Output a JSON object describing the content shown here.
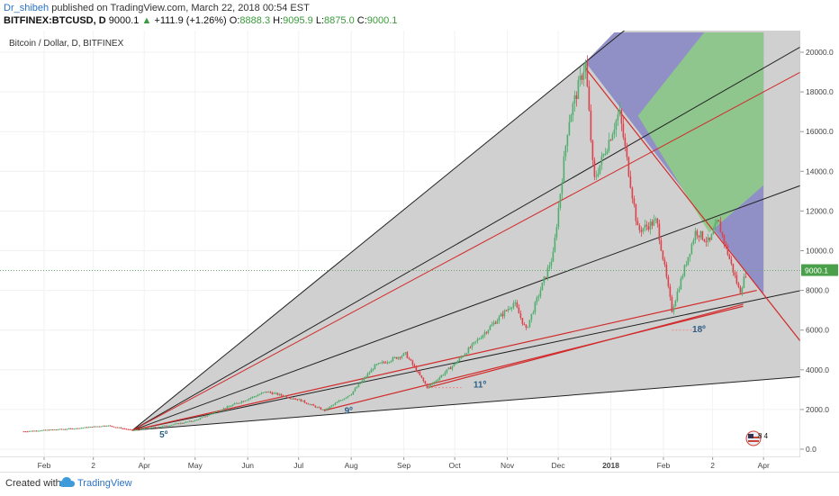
{
  "header": {
    "author": "Dr_shibeh",
    "published_text": "published on TradingView.com, March 22, 2018 00:54 EST",
    "symbol": "BITFINEX:BTCUSD, D",
    "last": "9000.1",
    "change": "+111.9 (+1.26%)",
    "open_label": "O:",
    "open": "8888.3",
    "high_label": "H:",
    "high": "9095.9",
    "low_label": "L:",
    "low": "8875.0",
    "close_label": "C:",
    "close": "9000.1"
  },
  "footer": {
    "created_with": "Created with",
    "brand": "TradingView"
  },
  "colors": {
    "up": "#4caf6a",
    "down": "#e0404a",
    "fan_fill": "#cdcdcd",
    "blue_zone": "#8c8cc6",
    "green_zone": "#8ec98a",
    "red_line": "#d22a2a",
    "black_line": "#222222"
  },
  "chart_data": {
    "type": "candlestick",
    "title": "Bitcoin / Dollar, D, BITFINEX",
    "x_tick_labels": [
      "Feb",
      "2",
      "Apr",
      "May",
      "Jun",
      "Jul",
      "Aug",
      "Sep",
      "Oct",
      "Nov",
      "Dec",
      "2018",
      "Feb",
      "2",
      "Apr"
    ],
    "y_ticks": [
      0,
      2000,
      4000,
      6000,
      8000,
      10000,
      12000,
      14000,
      16000,
      18000,
      20000
    ],
    "y_tick_labels": [
      "0.0",
      "2000.0",
      "4000.0",
      "6000.0",
      "8000.0",
      "10000.0",
      "12000.0",
      "14000.0",
      "16000.0",
      "18000.0",
      "20000.0"
    ],
    "ylim": [
      -400,
      21000
    ],
    "last_price_label": "9000.1",
    "last_price": 9000.1,
    "annotations": [
      "5º",
      "9º",
      "11º",
      "18º"
    ],
    "monthly_path": [
      {
        "t": "2017-01-20",
        "v": 900
      },
      {
        "t": "2017-02-20",
        "v": 1050
      },
      {
        "t": "2017-03-10",
        "v": 1200
      },
      {
        "t": "2017-03-25",
        "v": 950
      },
      {
        "t": "2017-04-15",
        "v": 1200
      },
      {
        "t": "2017-05-01",
        "v": 1450
      },
      {
        "t": "2017-05-25",
        "v": 2300
      },
      {
        "t": "2017-06-12",
        "v": 2900
      },
      {
        "t": "2017-07-01",
        "v": 2500
      },
      {
        "t": "2017-07-16",
        "v": 1950
      },
      {
        "t": "2017-08-01",
        "v": 2800
      },
      {
        "t": "2017-08-15",
        "v": 4200
      },
      {
        "t": "2017-09-02",
        "v": 4800
      },
      {
        "t": "2017-09-15",
        "v": 3100
      },
      {
        "t": "2017-10-01",
        "v": 4300
      },
      {
        "t": "2017-10-20",
        "v": 6000
      },
      {
        "t": "2017-11-05",
        "v": 7400
      },
      {
        "t": "2017-11-12",
        "v": 6000
      },
      {
        "t": "2017-11-28",
        "v": 9800
      },
      {
        "t": "2017-12-07",
        "v": 16500
      },
      {
        "t": "2017-12-17",
        "v": 19500
      },
      {
        "t": "2017-12-22",
        "v": 13500
      },
      {
        "t": "2018-01-06",
        "v": 17000
      },
      {
        "t": "2018-01-17",
        "v": 11000
      },
      {
        "t": "2018-01-28",
        "v": 11500
      },
      {
        "t": "2018-02-06",
        "v": 7000
      },
      {
        "t": "2018-02-20",
        "v": 11000
      },
      {
        "t": "2018-02-28",
        "v": 10400
      },
      {
        "t": "2018-03-05",
        "v": 11500
      },
      {
        "t": "2018-03-18",
        "v": 7900
      },
      {
        "t": "2018-03-22",
        "v": 9000
      }
    ],
    "gann_fan": {
      "origin": {
        "t": "2017-03-25",
        "v": 950
      },
      "rays_to": [
        {
          "t": "2017-12-17",
          "v": 19500,
          "color": "black"
        },
        {
          "t": "2018-04-01",
          "v": 19200,
          "color": "black"
        },
        {
          "t": "2018-04-01",
          "v": 12600,
          "color": "black"
        },
        {
          "t": "2018-04-01",
          "v": 7600,
          "color": "black"
        },
        {
          "t": "2018-04-01",
          "v": 3500,
          "color": "black"
        },
        {
          "t": "2018-04-01",
          "v": 18000,
          "color": "red"
        }
      ]
    },
    "trend_lines_red": [
      [
        {
          "t": "2017-03-25",
          "v": 950
        },
        {
          "t": "2018-03-28",
          "v": 8000
        }
      ],
      [
        {
          "t": "2017-07-16",
          "v": 1950
        },
        {
          "t": "2018-03-20",
          "v": 7200
        }
      ],
      [
        {
          "t": "2017-09-15",
          "v": 3100
        },
        {
          "t": "2018-03-20",
          "v": 7300
        }
      ],
      [
        {
          "t": "2017-12-17",
          "v": 19200
        },
        {
          "t": "2018-04-01",
          "v": 7800
        }
      ]
    ],
    "blue_zone": [
      {
        "t": "2017-12-17",
        "v": 19500
      },
      {
        "t": "2018-01-03",
        "v": 21000
      },
      {
        "t": "2018-04-01",
        "v": 21000
      },
      {
        "t": "2018-04-01",
        "v": 7800
      }
    ],
    "green_zone": [
      {
        "t": "2018-01-17",
        "v": 16800
      },
      {
        "t": "2018-02-25",
        "v": 21000
      },
      {
        "t": "2018-04-01",
        "v": 21000
      },
      {
        "t": "2018-04-01",
        "v": 13300
      },
      {
        "t": "2018-02-28",
        "v": 10900
      }
    ]
  }
}
